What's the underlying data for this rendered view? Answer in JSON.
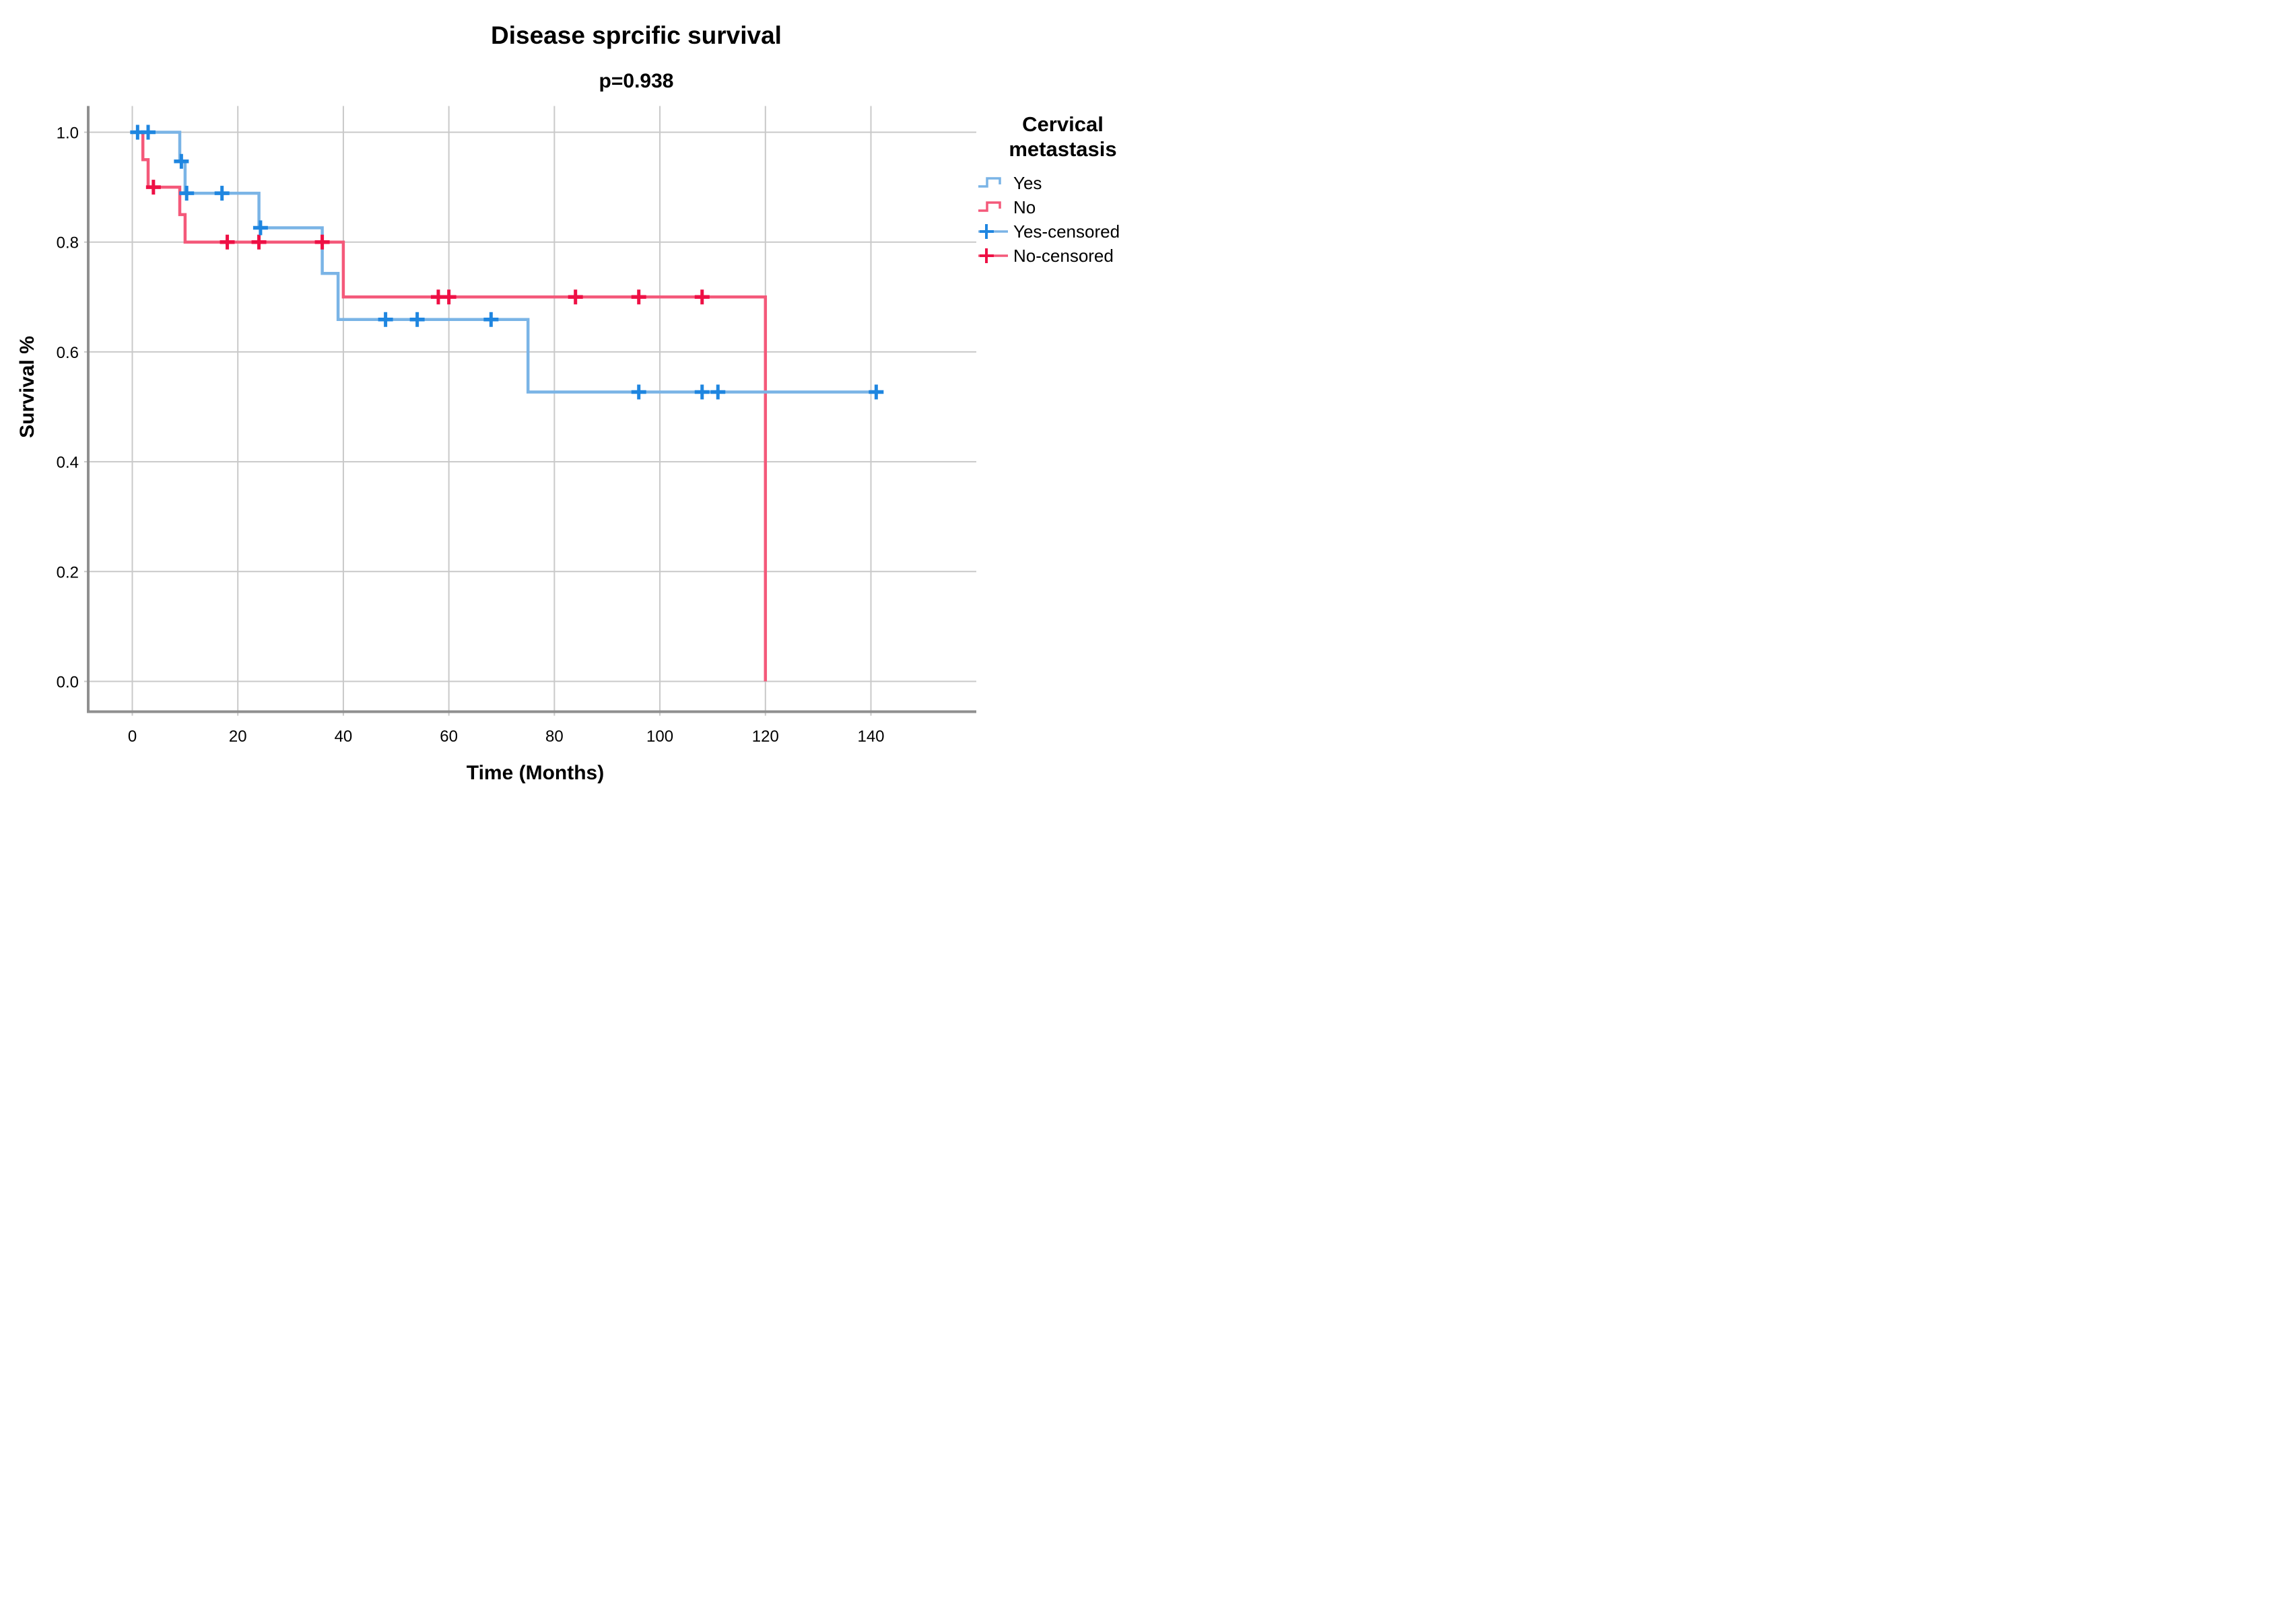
{
  "header": {
    "title": "Disease sprcific survival",
    "p_value": "p=0.938"
  },
  "axes": {
    "x": {
      "label": "Time (Months)",
      "tick_values": [
        0,
        20,
        40,
        60,
        80,
        100,
        120,
        140
      ],
      "tick_labels": [
        "0",
        "20",
        "40",
        "60",
        "80",
        "100",
        "120",
        "140"
      ]
    },
    "y": {
      "label": "Survival %",
      "tick_values": [
        0.0,
        0.2,
        0.4,
        0.6,
        0.8,
        1.0
      ],
      "tick_labels": [
        "0.0",
        "0.2",
        "0.4",
        "0.6",
        "0.8",
        "1.0"
      ]
    }
  },
  "legend": {
    "title": "Cervical metastasis",
    "items": [
      {
        "label": "Yes",
        "type": "step",
        "color": "#7ab4e6"
      },
      {
        "label": "No",
        "type": "step",
        "color": "#f4597a"
      },
      {
        "label": "Yes-censored",
        "type": "censor",
        "line_color": "#7ab4e6",
        "mark_color": "#1f86e0"
      },
      {
        "label": "No-censored",
        "type": "censor",
        "line_color": "#f4597a",
        "mark_color": "#ee1045"
      }
    ]
  },
  "colors": {
    "gridline": "#c9c9c9",
    "axis_frame": "#8f8f8f",
    "text": "#000000"
  },
  "chart_data": {
    "type": "line",
    "subtype": "kaplan-meier-step",
    "title": "Disease sprcific survival",
    "subtitle": "p=0.938",
    "xlabel": "Time (Months)",
    "ylabel": "Survival %",
    "xlim": [
      0,
      140
    ],
    "ylim": [
      0.0,
      1.0
    ],
    "x_ticks": [
      0,
      20,
      40,
      60,
      80,
      100,
      120,
      140
    ],
    "y_ticks": [
      0.0,
      0.2,
      0.4,
      0.6,
      0.8,
      1.0
    ],
    "grid": true,
    "legend_position": "right",
    "series": [
      {
        "name": "No",
        "color": "#f4597a",
        "censor_color": "#ee1045",
        "steps": [
          [
            0,
            1.0
          ],
          [
            2,
            1.0
          ],
          [
            2,
            0.95
          ],
          [
            3,
            0.95
          ],
          [
            3,
            0.9
          ],
          [
            9,
            0.9
          ],
          [
            9,
            0.85
          ],
          [
            10,
            0.85
          ],
          [
            10,
            0.8
          ],
          [
            40,
            0.8
          ],
          [
            40,
            0.7
          ],
          [
            120,
            0.7
          ],
          [
            120,
            0.0
          ]
        ],
        "censored_points": [
          [
            4,
            0.9
          ],
          [
            18,
            0.8
          ],
          [
            24,
            0.8
          ],
          [
            36,
            0.8
          ],
          [
            58,
            0.7
          ],
          [
            60,
            0.7
          ],
          [
            84,
            0.7
          ],
          [
            96,
            0.7
          ],
          [
            108,
            0.7
          ]
        ]
      },
      {
        "name": "Yes",
        "color": "#7ab4e6",
        "censor_color": "#1f86e0",
        "steps": [
          [
            0,
            1.0
          ],
          [
            9,
            1.0
          ],
          [
            9,
            0.947
          ],
          [
            10,
            0.947
          ],
          [
            10,
            0.889
          ],
          [
            24,
            0.889
          ],
          [
            24,
            0.826
          ],
          [
            36,
            0.826
          ],
          [
            36,
            0.743
          ],
          [
            39,
            0.743
          ],
          [
            39,
            0.659
          ],
          [
            75,
            0.659
          ],
          [
            75,
            0.527
          ],
          [
            142,
            0.527
          ]
        ],
        "censored_points": [
          [
            1,
            1.0
          ],
          [
            3,
            1.0
          ],
          [
            9.3,
            0.947
          ],
          [
            10.3,
            0.889
          ],
          [
            17,
            0.889
          ],
          [
            24.3,
            0.826
          ],
          [
            48,
            0.659
          ],
          [
            54,
            0.659
          ],
          [
            68,
            0.659
          ],
          [
            96,
            0.527
          ],
          [
            108,
            0.527
          ],
          [
            111,
            0.527
          ],
          [
            141,
            0.527
          ]
        ]
      }
    ]
  }
}
